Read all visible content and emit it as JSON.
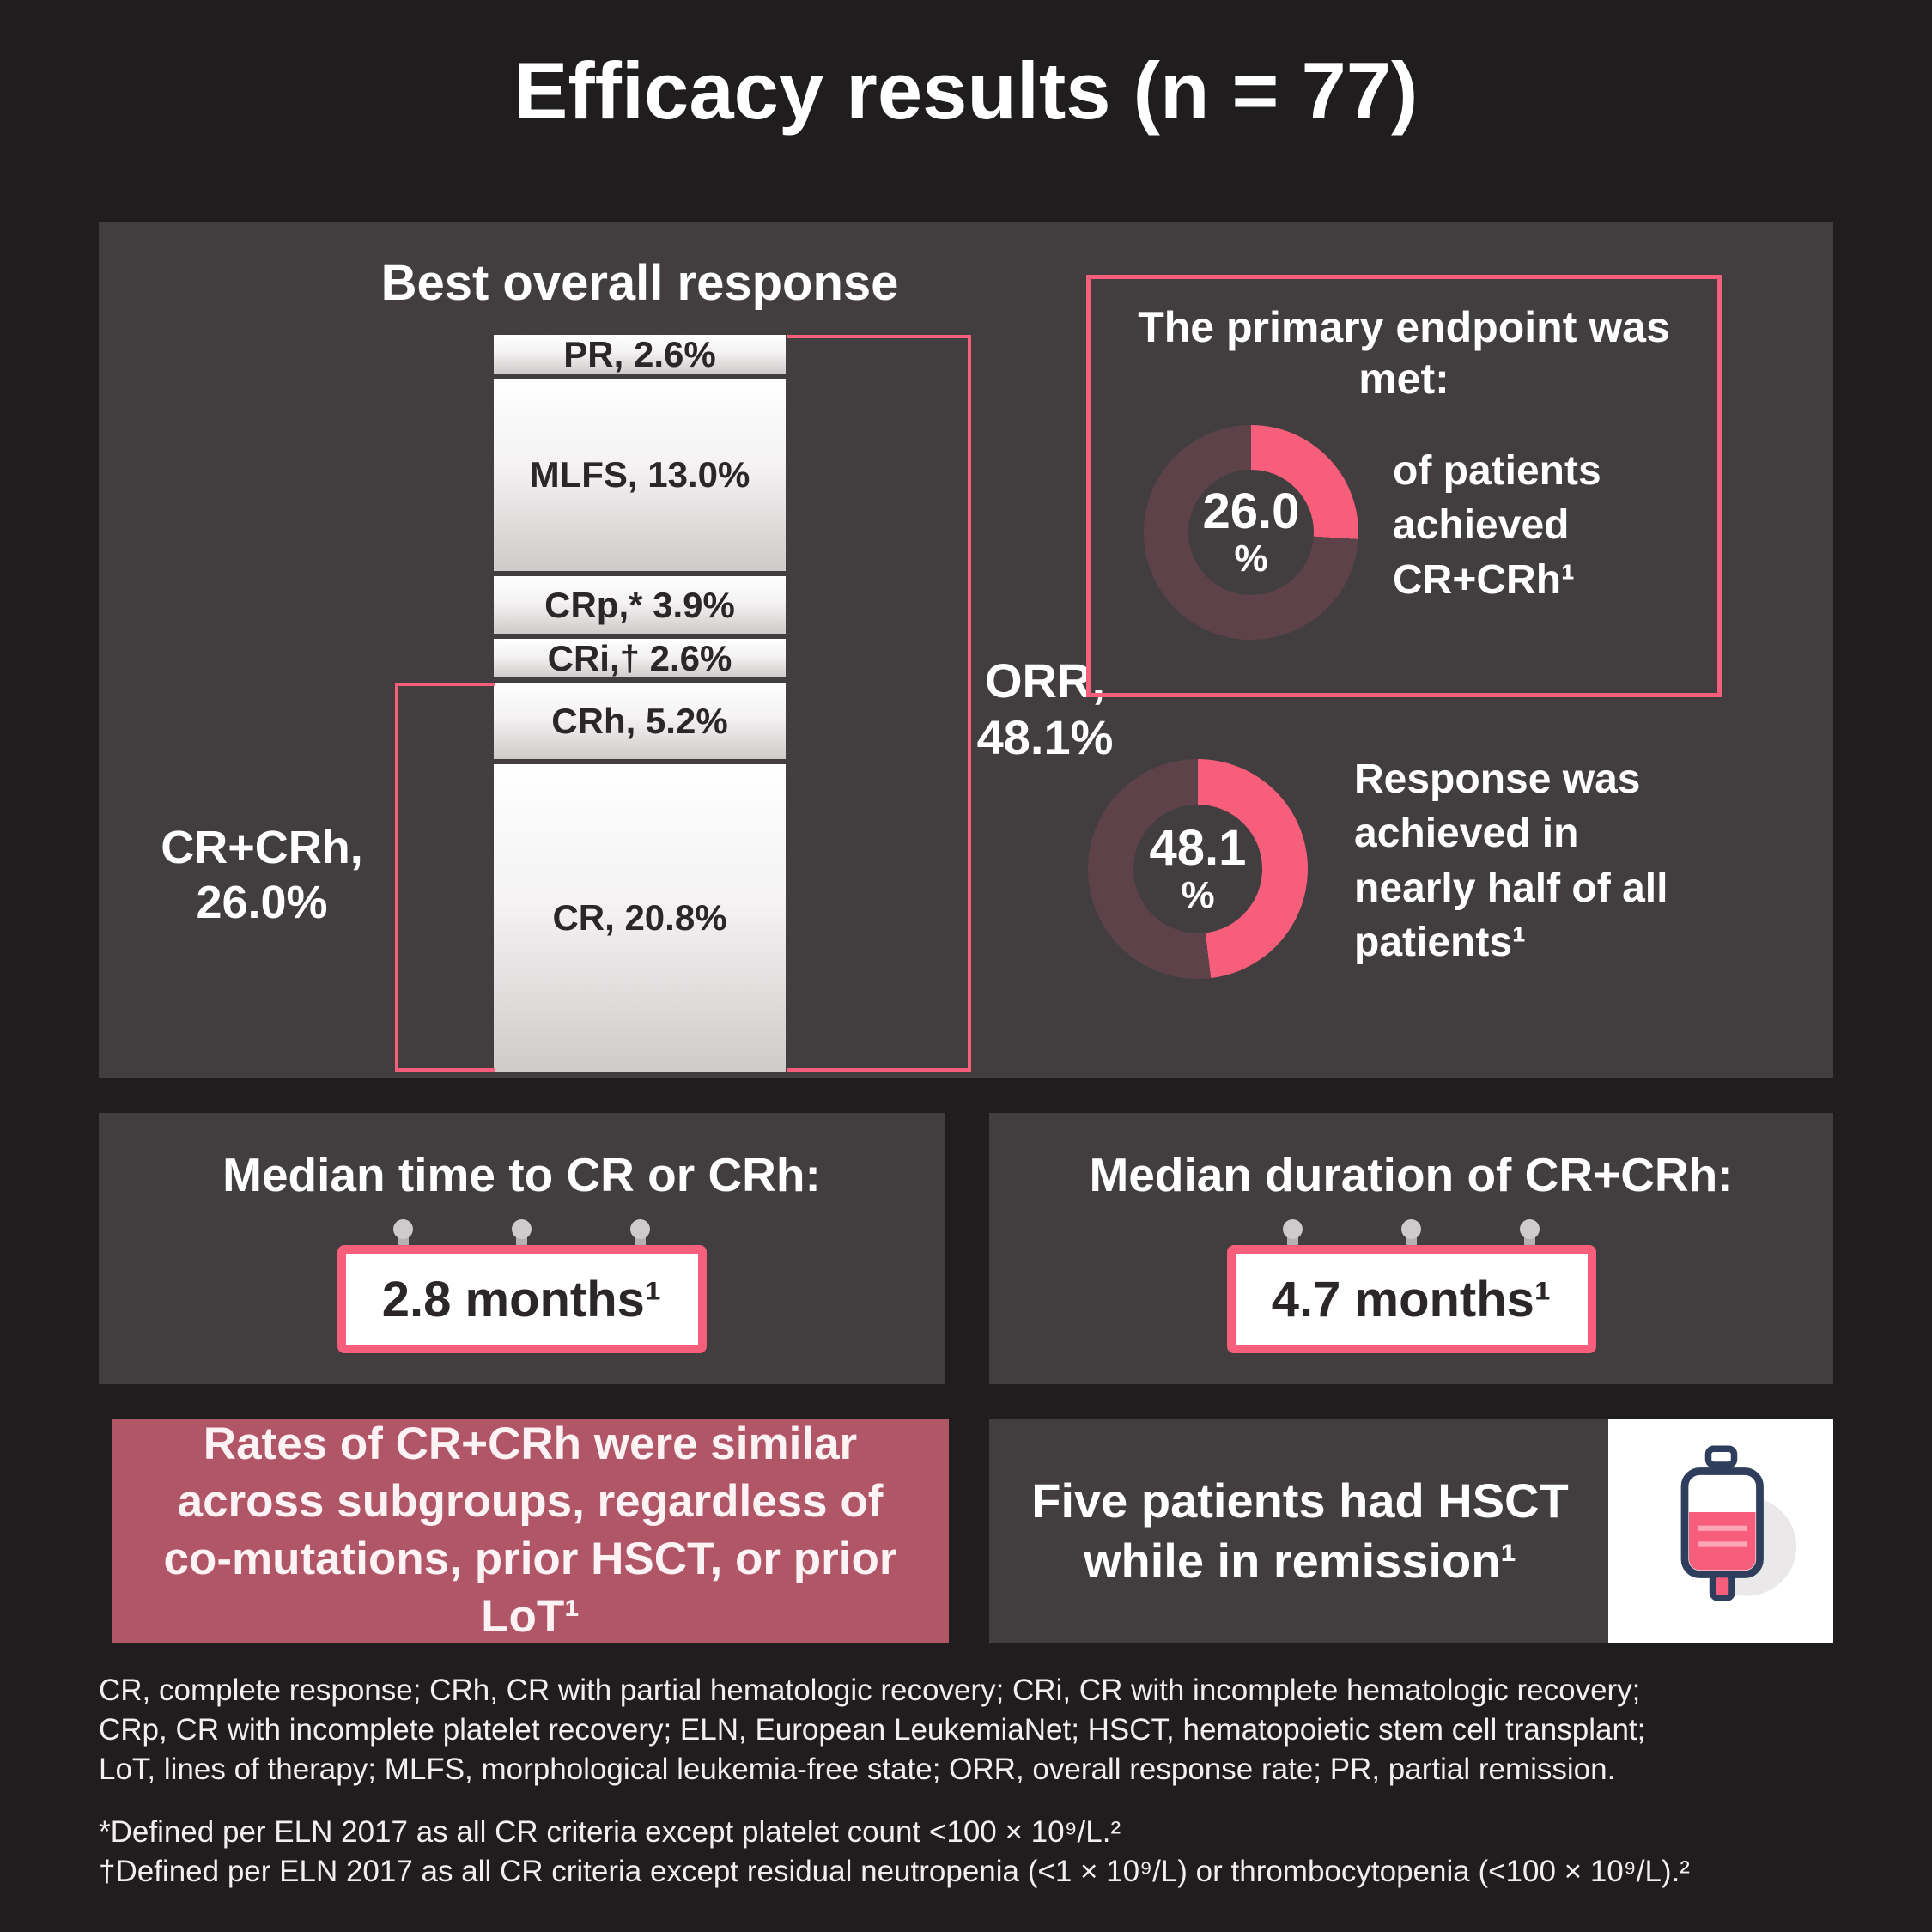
{
  "page": {
    "title": "Efficacy results (n = 77)"
  },
  "chart_data": [
    {
      "type": "bar",
      "subtype": "single-stacked-column",
      "title": "Best overall response",
      "unit": "%",
      "total_n": 77,
      "segments": [
        {
          "name": "PR",
          "label": "PR, 2.6%",
          "value": 2.6
        },
        {
          "name": "MLFS",
          "label": "MLFS, 13.0%",
          "value": 13.0
        },
        {
          "name": "CRp",
          "label": "CRp,* 3.9%",
          "value": 3.9
        },
        {
          "name": "CRi",
          "label": "CRi,† 2.6%",
          "value": 2.6
        },
        {
          "name": "CRh",
          "label": "CRh, 5.2%",
          "value": 5.2
        },
        {
          "name": "CR",
          "label": "CR, 20.8%",
          "value": 20.8
        }
      ],
      "brackets": [
        {
          "name": "ORR",
          "line1": "ORR,",
          "line2": "48.1%",
          "value": 48.1,
          "side": "right",
          "spans": [
            "PR",
            "MLFS",
            "CRp",
            "CRi",
            "CRh",
            "CR"
          ]
        },
        {
          "name": "CR+CRh",
          "line1": "CR+CRh,",
          "line2": "26.0%",
          "value": 26.0,
          "side": "left",
          "spans": [
            "CRh",
            "CR"
          ]
        }
      ]
    },
    {
      "type": "pie",
      "subtype": "donut",
      "value": 26.0,
      "label": "26.0",
      "unit": "%",
      "caption": "of patients achieved CR+CRh¹"
    },
    {
      "type": "pie",
      "subtype": "donut",
      "value": 48.1,
      "label": "48.1",
      "unit": "%",
      "caption": "Response was achieved in nearly half of all patients¹"
    }
  ],
  "panels": {
    "primary_endpoint": {
      "heading": "The primary endpoint was met:"
    },
    "median_time": {
      "heading": "Median time to CR or CRh:",
      "value": "2.8 months¹"
    },
    "median_duration": {
      "heading": "Median duration of CR+CRh:",
      "value": "4.7 months¹"
    },
    "subgroups": {
      "text": "Rates of CR+CRh were similar across subgroups, regardless of co-mutations, prior HSCT, or prior LoT¹"
    },
    "hsct": {
      "bold": "Five",
      "rest": " patients had HSCT while in remission¹"
    }
  },
  "footnotes": {
    "abbreviations": [
      "CR, complete response; CRh, CR with partial hematologic recovery; CRi, CR with incomplete hematologic recovery;",
      "CRp, CR with incomplete platelet recovery; ELN, European LeukemiaNet; HSCT, hematopoietic stem cell transplant;",
      "LoT, lines of therapy; MLFS, morphological leukemia-free state; ORR, overall response rate; PR, partial remission."
    ],
    "star": "*Defined per ELN 2017 as all CR criteria except platelet count <100 × 10⁹/L.²",
    "dagger": "†Defined per ELN 2017 as all CR criteria except residual neutropenia (<1 × 10⁹/L) or thrombocytopenia (<100 × 10⁹/L).²"
  },
  "icons": {
    "iv_bag": "iv-bag-icon",
    "calendar_pins": "calendar-pin"
  },
  "colors": {
    "background": "#201d1e",
    "panel": "#423e3f",
    "accent_pink": "#f75e7b",
    "donut_dark": "#5d4349",
    "maroon": "#b05666",
    "bar_label_dark": "#2b2728",
    "pin_gray": "#b5b1b2",
    "icon_navy": "#2e3e5c"
  }
}
